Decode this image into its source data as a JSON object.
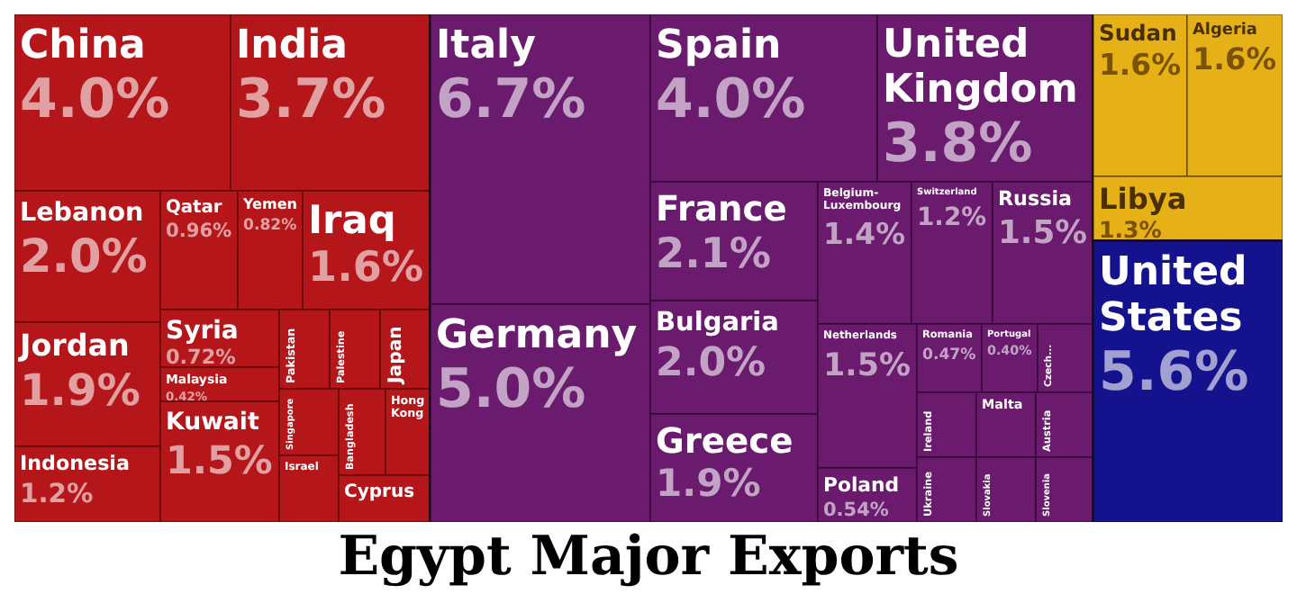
{
  "chart_data": {
    "type": "other",
    "title": "Egypt Major Exports",
    "categories": [
      "China",
      "India",
      "Lebanon",
      "Jordan",
      "Indonesia",
      "Qatar",
      "Yemen",
      "Iraq",
      "Syria",
      "Malaysia",
      "Kuwait",
      "Pakistan",
      "Palestine",
      "Japan",
      "Singapore",
      "Israel",
      "Bangladesh",
      "Hong Kong",
      "Cyprus",
      "Italy",
      "Germany",
      "Spain",
      "United Kingdom",
      "France",
      "Bulgaria",
      "Greece",
      "Belgium-Luxembourg",
      "Switzerland",
      "Russia",
      "Netherlands",
      "Poland",
      "Romania",
      "Portugal",
      "Czech...",
      "Ireland",
      "Ukraine",
      "Malta",
      "Austria",
      "Slovakia",
      "Slovenia",
      "Sudan",
      "Algeria",
      "Libya",
      "United States"
    ],
    "values": [
      4.0,
      3.7,
      2.0,
      1.9,
      1.2,
      0.96,
      0.82,
      1.6,
      0.72,
      0.42,
      1.5,
      null,
      null,
      null,
      null,
      null,
      null,
      null,
      null,
      6.7,
      5.0,
      4.0,
      3.8,
      2.1,
      2.0,
      1.9,
      1.4,
      1.2,
      1.5,
      1.5,
      0.54,
      0.47,
      0.4,
      null,
      null,
      null,
      null,
      null,
      null,
      null,
      1.6,
      1.6,
      1.3,
      5.6
    ],
    "value_labels": [
      "4.0%",
      "3.7%",
      "2.0%",
      "1.9%",
      "1.2%",
      "0.96%",
      "0.82%",
      "1.6%",
      "0.72%",
      "0.42%",
      "1.5%",
      null,
      null,
      null,
      null,
      null,
      null,
      null,
      null,
      "6.7%",
      "5.0%",
      "4.0%",
      "3.8%",
      "2.1%",
      "2.0%",
      "1.9%",
      "1.4%",
      "1.2%",
      "1.5%",
      "1.5%",
      "0.54%",
      "0.47%",
      "0.40%",
      null,
      null,
      null,
      null,
      null,
      null,
      null,
      "1.6%",
      "1.6%",
      "1.3%",
      "5.6%"
    ],
    "colors": [
      "#b5161a",
      "#b5161a",
      "#b5161a",
      "#b5161a",
      "#b5161a",
      "#b5161a",
      "#b5161a",
      "#b5161a",
      "#b5161a",
      "#b5161a",
      "#b5161a",
      "#b5161a",
      "#b5161a",
      "#b5161a",
      "#b5161a",
      "#b5161a",
      "#b5161a",
      "#b5161a",
      "#b5161a",
      "#6a1b6e",
      "#6a1b6e",
      "#6a1b6e",
      "#6a1b6e",
      "#6a1b6e",
      "#6a1b6e",
      "#6a1b6e",
      "#6a1b6e",
      "#6a1b6e",
      "#6a1b6e",
      "#6a1b6e",
      "#6a1b6e",
      "#6a1b6e",
      "#6a1b6e",
      "#6a1b6e",
      "#6a1b6e",
      "#6a1b6e",
      "#6a1b6e",
      "#6a1b6e",
      "#6a1b6e",
      "#6a1b6e",
      "#e6b117",
      "#e6b117",
      "#e6b117",
      "#14128c"
    ]
  }
}
